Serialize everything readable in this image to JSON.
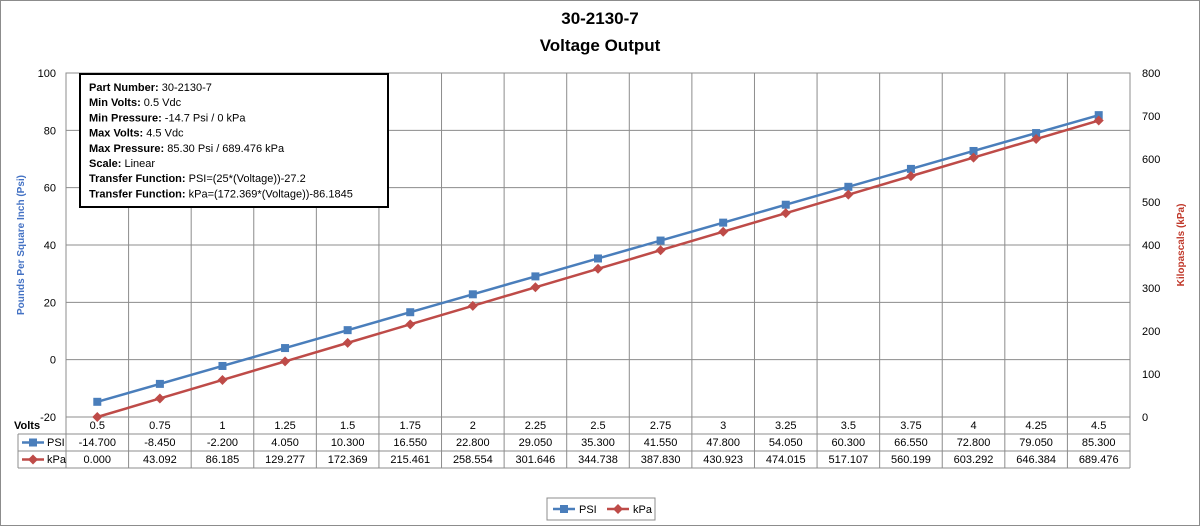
{
  "chart_data": {
    "type": "line",
    "title_line1": "30-2130-7",
    "title_line2": "Voltage Output",
    "xlabel": "Volts",
    "ylabel_left": "Pounds Per Square Inch (Psi)",
    "ylabel_right": "Kilopascals (kPa)",
    "ylim_left": [
      -20,
      100
    ],
    "yticks_left": [
      -20,
      0,
      20,
      40,
      60,
      80,
      100
    ],
    "ylim_right": [
      0,
      800
    ],
    "yticks_right": [
      0,
      100,
      200,
      300,
      400,
      500,
      600,
      700,
      800
    ],
    "categories": [
      "0.5",
      "0.75",
      "1",
      "1.25",
      "1.5",
      "1.75",
      "2",
      "2.25",
      "2.5",
      "2.75",
      "3",
      "3.25",
      "3.5",
      "3.75",
      "4",
      "4.25",
      "4.5"
    ],
    "series": [
      {
        "name": "PSI",
        "axis": "left",
        "color": "#4A7EBB",
        "marker": "square",
        "values": [
          -14.7,
          -8.45,
          -2.2,
          4.05,
          10.3,
          16.55,
          22.8,
          29.05,
          35.3,
          41.55,
          47.8,
          54.05,
          60.3,
          66.55,
          72.8,
          79.05,
          85.3
        ],
        "labels": [
          "-14.700",
          "-8.450",
          "-2.200",
          "4.050",
          "10.300",
          "16.550",
          "22.800",
          "29.050",
          "35.300",
          "41.550",
          "47.800",
          "54.050",
          "60.300",
          "66.550",
          "72.800",
          "79.050",
          "85.300"
        ]
      },
      {
        "name": "kPa",
        "axis": "right",
        "color": "#BE4B48",
        "marker": "diamond",
        "values": [
          0.0,
          43.092,
          86.185,
          129.277,
          172.369,
          215.461,
          258.554,
          301.646,
          344.738,
          387.83,
          430.923,
          474.015,
          517.107,
          560.199,
          603.292,
          646.384,
          689.476
        ],
        "labels": [
          "0.000",
          "43.092",
          "86.185",
          "129.277",
          "172.369",
          "215.461",
          "258.554",
          "301.646",
          "344.738",
          "387.830",
          "430.923",
          "474.015",
          "517.107",
          "560.199",
          "603.292",
          "646.384",
          "689.476"
        ]
      }
    ],
    "grid": true,
    "data_table": true,
    "legend_position": "bottom",
    "info_box": [
      {
        "label": "Part Number:",
        "value": " 30-2130-7"
      },
      {
        "label": "Min Volts:",
        "value": "  0.5 Vdc"
      },
      {
        "label": "Min Pressure:",
        "value": " -14.7 Psi / 0 kPa"
      },
      {
        "label": "Max Volts:",
        "value": " 4.5 Vdc"
      },
      {
        "label": "Max Pressure:",
        "value": "  85.30 Psi / 689.476 kPa"
      },
      {
        "label": "Scale:",
        "value": " Linear"
      },
      {
        "label": "Transfer Function:",
        "value": " PSI=(25*(Voltage))-27.2"
      },
      {
        "label": "Transfer Function:",
        "value": "  kPa=(172.369*(Voltage))-86.1845"
      }
    ]
  }
}
